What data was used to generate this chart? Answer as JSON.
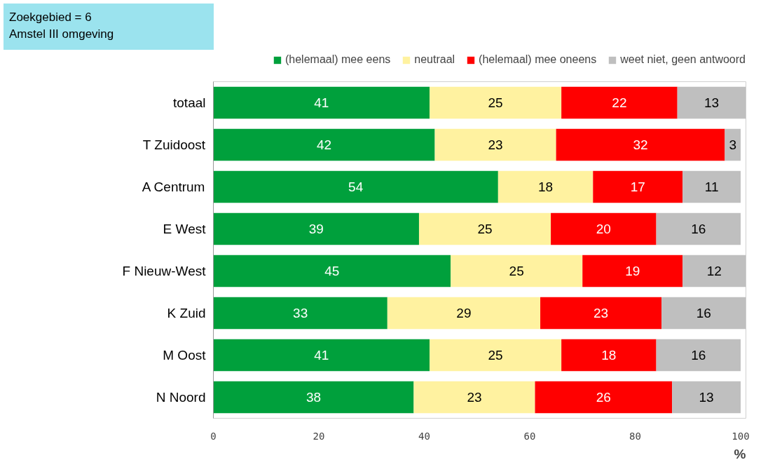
{
  "chart_data": {
    "type": "bar",
    "orientation": "horizontal",
    "stacked": true,
    "title": "Zoekgebied = 6",
    "subtitle": "Amstel III omgeving",
    "xlabel": "%",
    "categories": [
      "totaal",
      "T Zuidoost",
      "A Centrum",
      "E West",
      "F Nieuw-West",
      "K Zuid",
      "M Oost",
      "N Noord"
    ],
    "series": [
      {
        "name": "(helemaal) mee eens",
        "color": "#00a03c",
        "values": [
          41,
          42,
          54,
          39,
          45,
          33,
          41,
          38
        ]
      },
      {
        "name": "neutraal",
        "color": "#fff2a0",
        "values": [
          25,
          23,
          18,
          25,
          25,
          29,
          25,
          23
        ]
      },
      {
        "name": "(helemaal) mee oneens",
        "color": "#ff0000",
        "values": [
          22,
          32,
          17,
          20,
          19,
          23,
          18,
          26
        ]
      },
      {
        "name": "weet niet, geen antwoord",
        "color": "#bfbfbf",
        "values": [
          13,
          3,
          11,
          16,
          12,
          16,
          16,
          13
        ]
      }
    ],
    "xlim": [
      0,
      101
    ],
    "xticks": [
      0,
      20,
      40,
      60,
      80,
      100
    ],
    "data_labels": true,
    "legend": "top",
    "grid": false
  }
}
